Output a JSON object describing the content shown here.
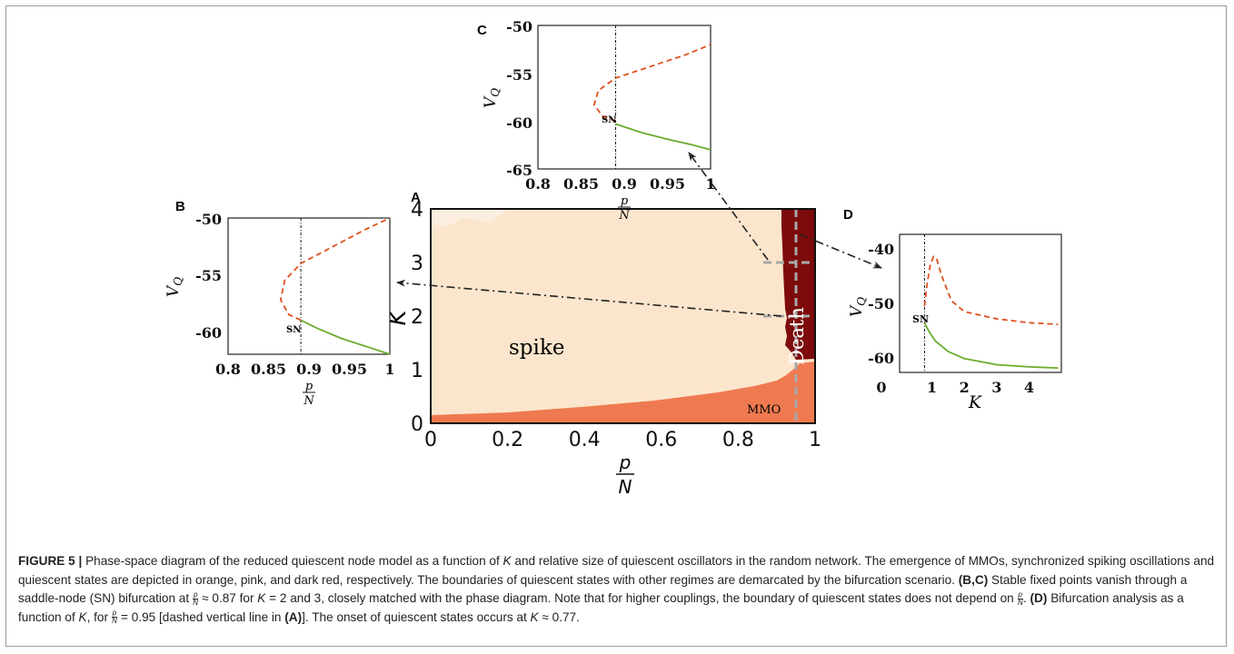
{
  "panel_a": {
    "letter": "A",
    "regions": {
      "spike": "spike",
      "death": "Death",
      "mmo": "MMO"
    },
    "colors": {
      "spike": "#fbe6cd",
      "mmo": "#ef7a50",
      "death": "#7d0b0b",
      "dashed": "#a8a8a8"
    },
    "xlabel_num": "p",
    "xlabel_den": "N",
    "ylabel": "K",
    "xticks": [
      "0",
      "0.2",
      "0.4",
      "0.6",
      "0.8",
      "1"
    ],
    "yticks": [
      "0",
      "1",
      "2",
      "3",
      "4"
    ]
  },
  "chart_data": [
    {
      "type": "heatmap",
      "panel": "A",
      "xlabel": "p/N",
      "ylabel": "K",
      "xlim": [
        0,
        1
      ],
      "ylim": [
        0,
        4
      ],
      "regions": [
        "spike",
        "Death",
        "MMO"
      ],
      "mmo_boundary": [
        [
          0,
          0.15
        ],
        [
          0.2,
          0.2
        ],
        [
          0.4,
          0.27
        ],
        [
          0.6,
          0.37
        ],
        [
          0.8,
          0.52
        ],
        [
          0.86,
          0.6
        ],
        [
          0.9,
          0.75
        ]
      ],
      "death_boundary": [
        [
          0.9,
          0.77
        ],
        [
          0.91,
          1.2
        ],
        [
          0.905,
          1.6
        ],
        [
          0.9,
          2.5
        ],
        [
          0.89,
          4
        ]
      ],
      "dashed_vertical_x": 0.95,
      "dashed_horizontal": [
        {
          "K": 2,
          "x": [
            0.87,
            1
          ]
        },
        {
          "K": 3,
          "x": [
            0.87,
            1
          ]
        }
      ]
    },
    {
      "type": "line",
      "panel": "B",
      "xlabel": "p/N",
      "ylabel": "V_Q",
      "xlim": [
        0.8,
        1
      ],
      "ylim": [
        -62,
        -50
      ],
      "sn_x": 0.89,
      "sn_label": "SN",
      "series": [
        {
          "style": "dashed",
          "color": "#e0501e",
          "x": [
            0.89,
            0.875,
            0.865,
            0.87,
            0.89,
            0.93,
            0.97,
            1.0
          ],
          "y": [
            -59,
            -58.5,
            -57.2,
            -55.5,
            -54,
            -52.5,
            -51,
            -50
          ]
        },
        {
          "style": "solid",
          "color": "#6aac2e",
          "x": [
            0.89,
            0.91,
            0.94,
            0.97,
            1.0
          ],
          "y": [
            -59,
            -59.7,
            -60.6,
            -61.3,
            -62
          ]
        }
      ]
    },
    {
      "type": "line",
      "panel": "C",
      "xlabel": "p/N",
      "ylabel": "V_Q",
      "xlim": [
        0.8,
        1
      ],
      "ylim": [
        -65,
        -50
      ],
      "sn_x": 0.89,
      "sn_label": "SN",
      "series": [
        {
          "style": "dashed",
          "color": "#e0501e",
          "x": [
            0.89,
            0.875,
            0.865,
            0.87,
            0.89,
            0.93,
            0.97,
            1.0
          ],
          "y": [
            -60,
            -59.5,
            -58.3,
            -56.8,
            -55.5,
            -54.3,
            -53.1,
            -52
          ]
        },
        {
          "style": "solid",
          "color": "#6aac2e",
          "x": [
            0.89,
            0.92,
            0.95,
            0.98,
            1.0
          ],
          "y": [
            -60.3,
            -61.2,
            -61.9,
            -62.5,
            -63
          ]
        }
      ]
    },
    {
      "type": "line",
      "panel": "D",
      "xlabel": "K",
      "ylabel": "V_Q",
      "xlim": [
        0,
        5
      ],
      "ylim": [
        -63,
        -38
      ],
      "sn_x": 0.77,
      "sn_label": "SN",
      "series": [
        {
          "style": "dashed",
          "color": "#e0501e",
          "x": [
            0.77,
            0.85,
            0.95,
            1.05,
            1.15,
            1.3,
            1.6,
            2.0,
            3.0,
            4.0,
            4.9
          ],
          "y": [
            -51,
            -47,
            -43.5,
            -42,
            -42.5,
            -45.5,
            -50,
            -52,
            -53.3,
            -54,
            -54.3
          ]
        },
        {
          "style": "solid",
          "color": "#6aac2e",
          "x": [
            0.77,
            0.9,
            1.1,
            1.5,
            2.0,
            3.0,
            4.0,
            4.9
          ],
          "y": [
            -54,
            -55.5,
            -57.3,
            -59.2,
            -60.5,
            -61.6,
            -62,
            -62.2
          ]
        }
      ]
    }
  ],
  "panels": {
    "b": {
      "letter": "B",
      "xlabel_num": "p",
      "xlabel_den": "N",
      "ylabel": "V",
      "ylabel_sub": "Q",
      "xticks": [
        "0.8",
        "0.85",
        "0.9",
        "0.95",
        "1"
      ],
      "yticks": [
        "-50",
        "-55",
        "-60"
      ],
      "sn": "SN"
    },
    "c": {
      "letter": "C",
      "xlabel_num": "p",
      "xlabel_den": "N",
      "ylabel": "V",
      "ylabel_sub": "Q",
      "xticks": [
        "0.8",
        "0.85",
        "0.9",
        "0.95",
        "1"
      ],
      "yticks": [
        "-50",
        "-55",
        "-60",
        "-65"
      ],
      "sn": "SN"
    },
    "d": {
      "letter": "D",
      "xlabel": "K",
      "ylabel": "V",
      "ylabel_sub": "Q",
      "xticks": [
        "0",
        "1",
        "2",
        "3",
        "4"
      ],
      "yticks": [
        "-40",
        "-50",
        "-60"
      ],
      "sn": "SN"
    }
  },
  "caption": {
    "label": "FIGURE 5 |",
    "line1": "Phase-space diagram of the reduced quiescent node model as a function of",
    "K": "K",
    "line1b": "and relative size of quiescent oscillators in the random network. The",
    "line2": "emergence of MMOs, synchronized spiking oscillations and quiescent states are depicted in orange, pink, and dark red, respectively. The boundaries of quiescent",
    "line3": "states with other regimes are demarcated by the bifurcation scenario.",
    "bc": "(B,C)",
    "line3b": "Stable fixed points vanish through a saddle-node (SN) bifurcation at",
    "approx087": "≈ 0.87 for",
    "eq2": "= 2",
    "line4a": "and 3, closely matched with the phase diagram. Note that for higher couplings, the boundary of quiescent states does not depend on",
    "d": "(D)",
    "line4b": "Bifurcation analysis as a",
    "line5a": "function of",
    "line5b": ", for",
    "eq095": "= 0.95 [dashed vertical line in",
    "a": "(A)",
    "line5c": "]. The onset of quiescent states occurs at",
    "approx077": "≈ 0.77.",
    "p": "p",
    "N": "N"
  }
}
